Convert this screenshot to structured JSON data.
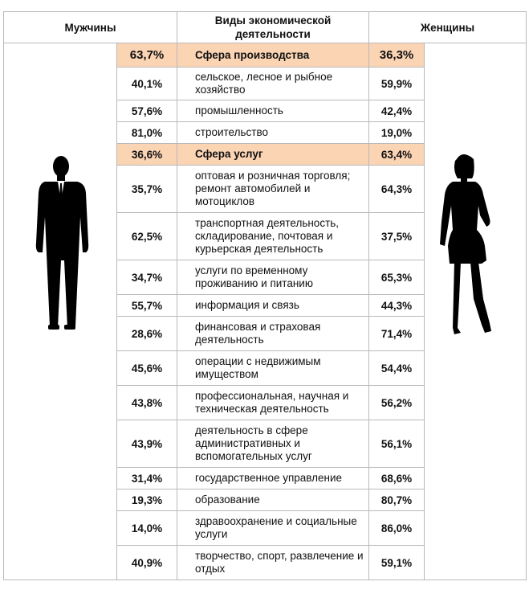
{
  "header": {
    "men": "Мужчины",
    "activity": "Виды экономической деятельности",
    "women": "Женщины"
  },
  "rows": [
    {
      "label": "Сфера производства",
      "men": "63,7%",
      "women": "36,3%",
      "sector": true
    },
    {
      "label": "сельское, лесное и рыбное хозяйство",
      "men": "40,1%",
      "women": "59,9%"
    },
    {
      "label": "промышленность",
      "men": "57,6%",
      "women": "42,4%"
    },
    {
      "label": "строительство",
      "men": "81,0%",
      "women": "19,0%"
    },
    {
      "label": "Сфера услуг",
      "men": "36,6%",
      "women": "63,4%",
      "sector": true
    },
    {
      "label": "оптовая и розничная торговля; ремонт автомобилей и мотоциклов",
      "men": "35,7%",
      "women": "64,3%"
    },
    {
      "label": "транспортная деятельность, складирование, почтовая и курьерская деятельность",
      "men": "62,5%",
      "women": "37,5%"
    },
    {
      "label": "услуги по временному проживанию и питанию",
      "men": "34,7%",
      "women": "65,3%"
    },
    {
      "label": "информация и связь",
      "men": "55,7%",
      "women": "44,3%"
    },
    {
      "label": "финансовая и страховая деятельность",
      "men": "28,6%",
      "women": "71,4%"
    },
    {
      "label": "операции с недвижимым имуществом",
      "men": "45,6%",
      "women": "54,4%"
    },
    {
      "label": "профессиональная, научная и техническая деятельность",
      "men": "43,8%",
      "women": "56,2%"
    },
    {
      "label": "деятельность в сфере административных и вспомогательных услуг",
      "men": "43,9%",
      "women": "56,1%"
    },
    {
      "label": "государственное управление",
      "men": "31,4%",
      "women": "68,6%"
    },
    {
      "label": "образование",
      "men": "19,3%",
      "women": "80,7%"
    },
    {
      "label": "здравоохранение и социальные услуги",
      "men": "14,0%",
      "women": "86,0%"
    },
    {
      "label": "творчество, спорт, развлечение и отдых",
      "men": "40,9%",
      "women": "59,1%"
    }
  ],
  "chart_data": {
    "type": "table",
    "columns": [
      "Мужчины",
      "Виды экономической деятельности",
      "Женщины"
    ],
    "categories": [
      "Сфера производства",
      "сельское, лесное и рыбное хозяйство",
      "промышленность",
      "строительство",
      "Сфера услуг",
      "оптовая и розничная торговля; ремонт автомобилей и мотоциклов",
      "транспортная деятельность, складирование, почтовая и курьерская деятельность",
      "услуги по временному проживанию и питанию",
      "информация и связь",
      "финансовая и страховая деятельность",
      "операции с недвижимым имуществом",
      "профессиональная, научная и техническая деятельность",
      "деятельность в сфере административных и вспомогательных услуг",
      "государственное управление",
      "образование",
      "здравоохранение и социальные услуги",
      "творчество, спорт, развлечение и отдых"
    ],
    "series": [
      {
        "name": "Мужчины",
        "values": [
          63.7,
          40.1,
          57.6,
          81.0,
          36.6,
          35.7,
          62.5,
          34.7,
          55.7,
          28.6,
          45.6,
          43.8,
          43.9,
          31.4,
          19.3,
          14.0,
          40.9
        ]
      },
      {
        "name": "Женщины",
        "values": [
          36.3,
          59.9,
          42.4,
          19.0,
          63.4,
          64.3,
          37.5,
          65.3,
          44.3,
          71.4,
          54.4,
          56.2,
          56.1,
          68.6,
          80.7,
          86.0,
          59.1
        ]
      }
    ],
    "colors": {
      "men": "#1f3864",
      "women": "#e00000",
      "sector_fill": "#fbd4b4"
    },
    "icons": [
      "man-silhouette-icon",
      "woman-silhouette-icon"
    ]
  }
}
